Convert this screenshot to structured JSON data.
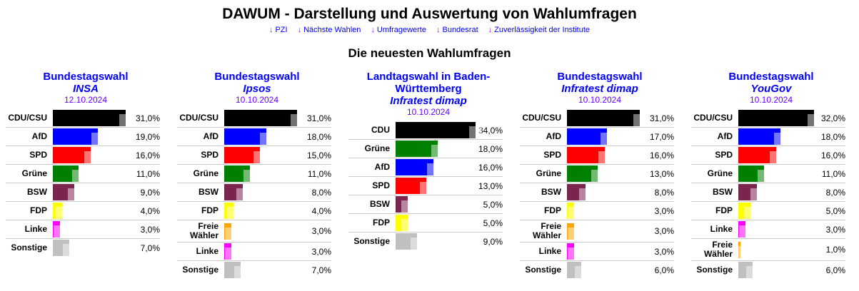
{
  "title": "DAWUM - Darstellung und Auswertung von Wahlumfragen",
  "nav": [
    {
      "arrow": "↓",
      "label": "PZI"
    },
    {
      "arrow": "↓",
      "label": "Nächste Wahlen"
    },
    {
      "arrow": "↓",
      "label": "Umfragewerte"
    },
    {
      "arrow": "↓",
      "label": "Bundesrat"
    },
    {
      "arrow": "↓",
      "label": "Zuverlässigkeit der Institute"
    }
  ],
  "section_title": "Die neuesten Wahlumfragen",
  "colors": {
    "CDU/CSU": "#000000",
    "CDU": "#000000",
    "AfD": "#0000ff",
    "SPD": "#ff0000",
    "Grüne": "#008000",
    "BSW": "#7b2450",
    "FDP": "#ffff00",
    "Linke": "#ff00ff",
    "Freie Wähler": "#ffa500",
    "Sonstige": "#c0c0c0"
  },
  "polls": [
    {
      "election": "Bundestagswahl",
      "institute": "INSA",
      "date": "12.10.2024",
      "rows": [
        {
          "party": "CDU/CSU",
          "value": 31,
          "label": "31,0%"
        },
        {
          "party": "AfD",
          "value": 19,
          "label": "19,0%"
        },
        {
          "party": "SPD",
          "value": 16,
          "label": "16,0%"
        },
        {
          "party": "Grüne",
          "value": 11,
          "label": "11,0%"
        },
        {
          "party": "BSW",
          "value": 9,
          "label": "9,0%"
        },
        {
          "party": "FDP",
          "value": 4,
          "label": "4,0%"
        },
        {
          "party": "Linke",
          "value": 3,
          "label": "3,0%"
        },
        {
          "party": "Sonstige",
          "value": 7,
          "label": "7,0%"
        }
      ]
    },
    {
      "election": "Bundestagswahl",
      "institute": "Ipsos",
      "date": "10.10.2024",
      "rows": [
        {
          "party": "CDU/CSU",
          "value": 31,
          "label": "31,0%"
        },
        {
          "party": "AfD",
          "value": 18,
          "label": "18,0%"
        },
        {
          "party": "SPD",
          "value": 15,
          "label": "15,0%"
        },
        {
          "party": "Grüne",
          "value": 11,
          "label": "11,0%"
        },
        {
          "party": "BSW",
          "value": 8,
          "label": "8,0%"
        },
        {
          "party": "FDP",
          "value": 4,
          "label": "4,0%"
        },
        {
          "party": "Freie Wähler",
          "value": 3,
          "label": "3,0%"
        },
        {
          "party": "Linke",
          "value": 3,
          "label": "3,0%"
        },
        {
          "party": "Sonstige",
          "value": 7,
          "label": "7,0%"
        }
      ]
    },
    {
      "election": "Landtagswahl in Baden-Württemberg",
      "institute": "Infratest dimap",
      "date": "10.10.2024",
      "rows": [
        {
          "party": "CDU",
          "value": 34,
          "label": "34,0%"
        },
        {
          "party": "Grüne",
          "value": 18,
          "label": "18,0%"
        },
        {
          "party": "AfD",
          "value": 16,
          "label": "16,0%"
        },
        {
          "party": "SPD",
          "value": 13,
          "label": "13,0%"
        },
        {
          "party": "BSW",
          "value": 5,
          "label": "5,0%"
        },
        {
          "party": "FDP",
          "value": 5,
          "label": "5,0%"
        },
        {
          "party": "Sonstige",
          "value": 9,
          "label": "9,0%"
        }
      ]
    },
    {
      "election": "Bundestagswahl",
      "institute": "Infratest dimap",
      "date": "10.10.2024",
      "rows": [
        {
          "party": "CDU/CSU",
          "value": 31,
          "label": "31,0%"
        },
        {
          "party": "AfD",
          "value": 17,
          "label": "17,0%"
        },
        {
          "party": "SPD",
          "value": 16,
          "label": "16,0%"
        },
        {
          "party": "Grüne",
          "value": 13,
          "label": "13,0%"
        },
        {
          "party": "BSW",
          "value": 8,
          "label": "8,0%"
        },
        {
          "party": "FDP",
          "value": 3,
          "label": "3,0%"
        },
        {
          "party": "Freie Wähler",
          "value": 3,
          "label": "3,0%"
        },
        {
          "party": "Linke",
          "value": 3,
          "label": "3,0%"
        },
        {
          "party": "Sonstige",
          "value": 6,
          "label": "6,0%"
        }
      ]
    },
    {
      "election": "Bundestagswahl",
      "institute": "YouGov",
      "date": "10.10.2024",
      "rows": [
        {
          "party": "CDU/CSU",
          "value": 32,
          "label": "32,0%"
        },
        {
          "party": "AfD",
          "value": 18,
          "label": "18,0%"
        },
        {
          "party": "SPD",
          "value": 16,
          "label": "16,0%"
        },
        {
          "party": "Grüne",
          "value": 11,
          "label": "11,0%"
        },
        {
          "party": "BSW",
          "value": 8,
          "label": "8,0%"
        },
        {
          "party": "FDP",
          "value": 5,
          "label": "5,0%"
        },
        {
          "party": "Linke",
          "value": 3,
          "label": "3,0%"
        },
        {
          "party": "Freie Wähler",
          "value": 1,
          "label": "1,0%"
        },
        {
          "party": "Sonstige",
          "value": 6,
          "label": "6,0%"
        }
      ]
    }
  ]
}
